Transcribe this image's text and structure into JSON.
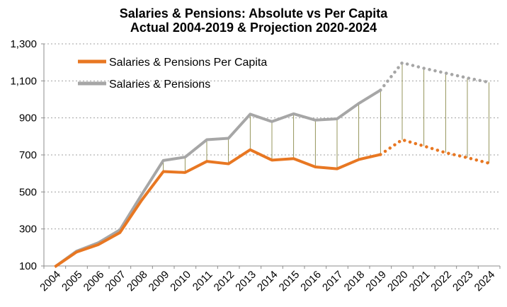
{
  "chart_data": {
    "type": "line",
    "title": "Salaries & Pensions: Absolute vs Per Capita",
    "subtitle": "Actual 2004-2019 & Projection 2020-2024",
    "xlabel": "",
    "ylabel": "",
    "ylim": [
      100,
      1300
    ],
    "yticks": [
      "1,300",
      "1,100",
      "900",
      "700",
      "500",
      "300",
      "100"
    ],
    "ytick_values": [
      1300,
      1100,
      900,
      700,
      500,
      300,
      100
    ],
    "categories": [
      "2004",
      "2005",
      "2006",
      "2007",
      "2008",
      "2009",
      "2010",
      "2011",
      "2012",
      "2013",
      "2014",
      "2015",
      "2016",
      "2017",
      "2018",
      "2019",
      "2020",
      "2021",
      "2022",
      "2023",
      "2024"
    ],
    "actual_last_index": 15,
    "drop_lines": "2009-2024",
    "legend_position": "top-left",
    "series": [
      {
        "name": "Salaries & Pensions Per Capita",
        "color": "#E87722",
        "values": [
          95,
          175,
          215,
          280,
          455,
          610,
          605,
          665,
          652,
          728,
          672,
          680,
          635,
          625,
          675,
          702,
          782,
          748,
          712,
          685,
          655
        ]
      },
      {
        "name": "Salaries & Pensions",
        "color": "#A6A6A6",
        "values": [
          95,
          180,
          225,
          295,
          485,
          670,
          688,
          782,
          790,
          920,
          880,
          922,
          888,
          895,
          978,
          1050,
          1198,
          1168,
          1142,
          1116,
          1092
        ]
      }
    ],
    "drop_line_color": "#7A7A33"
  }
}
